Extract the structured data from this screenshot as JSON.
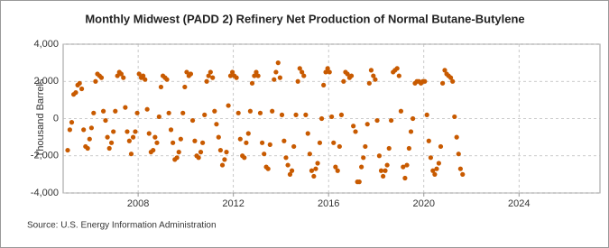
{
  "chart_data": {
    "type": "scatter",
    "title": "Monthly Midwest (PADD 2) Refinery Net Production of Normal Butane-Butylene",
    "y_label": "Thousand Barrels",
    "source": "Source: U.S. Energy Information Administration",
    "color": "#c85a00",
    "xlim": [
      2004.85,
      2027.4
    ],
    "ylim": [
      -4000,
      4000
    ],
    "xticks": [
      2008,
      2012,
      2016,
      2020,
      2024
    ],
    "yticks": [
      {
        "value": -4000,
        "label": "-4,000"
      },
      {
        "value": -2000,
        "label": "-2,000"
      },
      0,
      {
        "value": 2000,
        "label": "2,000"
      },
      {
        "value": 4000,
        "label": "4,000"
      }
    ],
    "grid": true,
    "x": [
      2005.04,
      2005.13,
      2005.21,
      2005.29,
      2005.38,
      2005.46,
      2005.54,
      2005.63,
      2005.71,
      2005.79,
      2005.88,
      2005.96,
      2006.04,
      2006.13,
      2006.21,
      2006.29,
      2006.38,
      2006.46,
      2006.54,
      2006.63,
      2006.71,
      2006.79,
      2006.88,
      2006.96,
      2007.04,
      2007.13,
      2007.21,
      2007.29,
      2007.38,
      2007.46,
      2007.54,
      2007.63,
      2007.71,
      2007.79,
      2007.88,
      2007.96,
      2008.04,
      2008.13,
      2008.21,
      2008.29,
      2008.38,
      2008.46,
      2008.54,
      2008.63,
      2008.71,
      2008.79,
      2008.88,
      2008.96,
      2009.04,
      2009.13,
      2009.21,
      2009.29,
      2009.38,
      2009.46,
      2009.54,
      2009.63,
      2009.71,
      2009.79,
      2009.88,
      2009.96,
      2010.04,
      2010.13,
      2010.21,
      2010.29,
      2010.38,
      2010.46,
      2010.54,
      2010.63,
      2010.71,
      2010.79,
      2010.88,
      2010.96,
      2011.04,
      2011.13,
      2011.21,
      2011.29,
      2011.38,
      2011.46,
      2011.54,
      2011.63,
      2011.71,
      2011.79,
      2011.88,
      2011.96,
      2012.04,
      2012.13,
      2012.21,
      2012.29,
      2012.38,
      2012.46,
      2012.54,
      2012.63,
      2012.71,
      2012.79,
      2012.88,
      2012.96,
      2013.04,
      2013.13,
      2013.21,
      2013.29,
      2013.38,
      2013.46,
      2013.54,
      2013.63,
      2013.71,
      2013.79,
      2013.88,
      2013.96,
      2014.04,
      2014.13,
      2014.21,
      2014.29,
      2014.38,
      2014.46,
      2014.54,
      2014.63,
      2014.71,
      2014.79,
      2014.88,
      2014.96,
      2015.04,
      2015.13,
      2015.21,
      2015.29,
      2015.38,
      2015.46,
      2015.54,
      2015.63,
      2015.71,
      2015.79,
      2015.88,
      2015.96,
      2016.04,
      2016.13,
      2016.21,
      2016.29,
      2016.38,
      2016.46,
      2016.54,
      2016.63,
      2016.71,
      2016.79,
      2016.88,
      2016.96,
      2017.04,
      2017.13,
      2017.21,
      2017.29,
      2017.38,
      2017.46,
      2017.54,
      2017.63,
      2017.71,
      2017.79,
      2017.88,
      2017.96,
      2018.04,
      2018.13,
      2018.21,
      2018.29,
      2018.38,
      2018.46,
      2018.54,
      2018.63,
      2018.71,
      2018.79,
      2018.88,
      2018.96,
      2019.04,
      2019.13,
      2019.21,
      2019.29,
      2019.38,
      2019.46,
      2019.54,
      2019.63,
      2019.71,
      2019.79,
      2019.88,
      2019.96,
      2020.04,
      2020.13,
      2020.21,
      2020.29,
      2020.38,
      2020.46,
      2020.54,
      2020.63,
      2020.71,
      2020.79,
      2020.88,
      2020.96,
      2021.04,
      2021.13,
      2021.21,
      2021.29,
      2021.38,
      2021.46,
      2021.54,
      2021.63
    ],
    "values": [
      -1700,
      -600,
      -200,
      1300,
      1400,
      1800,
      1900,
      1600,
      -600,
      -1500,
      -1600,
      -1100,
      -500,
      300,
      2000,
      2400,
      2300,
      2200,
      400,
      -100,
      -1000,
      -1600,
      -1300,
      -700,
      400,
      2300,
      2500,
      2400,
      2200,
      600,
      -700,
      -1200,
      -1900,
      -1000,
      -700,
      300,
      2400,
      2200,
      2300,
      2100,
      500,
      -800,
      -1800,
      -1700,
      -1000,
      -1300,
      100,
      1700,
      2300,
      2200,
      2100,
      300,
      -600,
      -1300,
      -2200,
      -2100,
      -1800,
      -1100,
      300,
      1700,
      2500,
      2300,
      2400,
      -100,
      -1200,
      -2000,
      -2100,
      -1800,
      -1300,
      200,
      2000,
      2300,
      2500,
      2200,
      400,
      -300,
      -1000,
      -1700,
      -2500,
      -2200,
      -1800,
      700,
      2300,
      2500,
      2300,
      2200,
      300,
      -1100,
      -2000,
      -2100,
      -1300,
      -800,
      400,
      1900,
      2300,
      2500,
      2300,
      300,
      -1300,
      -1900,
      -2600,
      -2700,
      -1400,
      400,
      2100,
      2500,
      3000,
      2200,
      200,
      -1200,
      -2100,
      -2500,
      -3000,
      -2800,
      -1500,
      200,
      2000,
      2700,
      2500,
      2300,
      200,
      -800,
      -1900,
      -2800,
      -3100,
      -2700,
      -2400,
      -1300,
      0,
      1800,
      2500,
      2700,
      2500,
      100,
      -1300,
      -2600,
      -2800,
      -1500,
      200,
      2000,
      2500,
      2400,
      2200,
      2300,
      -400,
      -700,
      -3400,
      -3400,
      -2600,
      -2100,
      -1500,
      -300,
      1900,
      2600,
      2300,
      2100,
      -100,
      -2000,
      -2800,
      -3100,
      -2800,
      -2500,
      -1600,
      -100,
      2500,
      2600,
      2700,
      2300,
      400,
      -2600,
      -3200,
      -2500,
      -1600,
      -700,
      0,
      1900,
      2000,
      2000,
      1900,
      2000,
      2000,
      200,
      -1200,
      -2100,
      -2800,
      -3000,
      -2700,
      -2400,
      -1500,
      1900,
      2600,
      2400,
      2300,
      2200,
      2000,
      100,
      -1000,
      -1900,
      -2700,
      -3000
    ]
  }
}
